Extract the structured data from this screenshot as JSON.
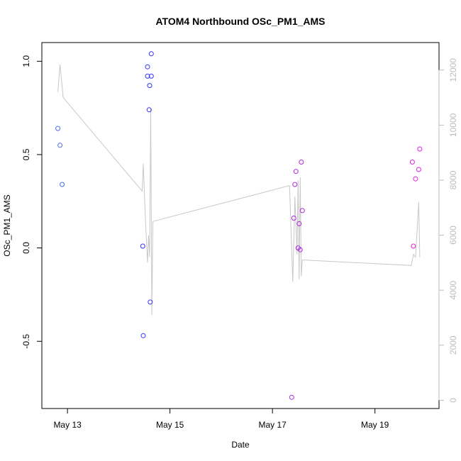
{
  "chart_data": {
    "type": "scatter",
    "title": "ATOM4 Northbound OSc_PM1_AMS",
    "xlabel": "Date",
    "ylabel": "OSc_PM1_AMS",
    "x_axis_type": "date",
    "xlim": [
      "2023-05-12T12:00",
      "2023-05-20T06:00"
    ],
    "ylim": [
      -0.86,
      1.1
    ],
    "y2lim": [
      -300,
      13000
    ],
    "x_ticks": [
      {
        "date": "2023-05-13T00:00",
        "label": "May 13"
      },
      {
        "date": "2023-05-15T00:00",
        "label": "May 15"
      },
      {
        "date": "2023-05-17T00:00",
        "label": "May 17"
      },
      {
        "date": "2023-05-19T00:00",
        "label": "May 19"
      }
    ],
    "y_ticks": [
      {
        "value": -0.5,
        "label": "-0.5"
      },
      {
        "value": 0.0,
        "label": "0.0"
      },
      {
        "value": 0.5,
        "label": "0.5"
      },
      {
        "value": 1.0,
        "label": "1.0"
      }
    ],
    "y2_ticks": [
      {
        "value": 0,
        "label": "0"
      },
      {
        "value": 2000,
        "label": "2000"
      },
      {
        "value": 4000,
        "label": "4000"
      },
      {
        "value": 6000,
        "label": "6000"
      },
      {
        "value": 8000,
        "label": "8000"
      },
      {
        "value": 10000,
        "label": "10000"
      },
      {
        "value": 12000,
        "label": "12000"
      }
    ],
    "grid": false,
    "series": [
      {
        "color": "#4a6cf0",
        "marker": "open-circle",
        "points": [
          [
            "2023-05-12T19:30",
            0.64
          ],
          [
            "2023-05-12T20:30",
            0.55
          ],
          [
            "2023-05-12T21:30",
            0.34
          ]
        ]
      },
      {
        "color": "#3333ff",
        "marker": "open-circle",
        "points": [
          [
            "2023-05-14T11:15",
            0.01
          ],
          [
            "2023-05-14T11:30",
            -0.47
          ],
          [
            "2023-05-14T13:30",
            0.97
          ],
          [
            "2023-05-14T13:30",
            0.92
          ],
          [
            "2023-05-14T14:15",
            0.74
          ],
          [
            "2023-05-14T14:30",
            0.87
          ],
          [
            "2023-05-14T14:45",
            -0.29
          ],
          [
            "2023-05-14T15:15",
            1.04
          ],
          [
            "2023-05-14T15:15",
            0.92
          ]
        ]
      },
      {
        "color": "#b026e0",
        "marker": "open-circle",
        "points": [
          [
            "2023-05-17T09:00",
            -0.8
          ],
          [
            "2023-05-17T10:00",
            0.16
          ],
          [
            "2023-05-17T10:30",
            0.34
          ],
          [
            "2023-05-17T11:00",
            0.41
          ],
          [
            "2023-05-17T12:00",
            0.0
          ],
          [
            "2023-05-17T12:30",
            0.13
          ],
          [
            "2023-05-17T13:00",
            -0.01
          ],
          [
            "2023-05-17T13:30",
            0.46
          ],
          [
            "2023-05-17T14:00",
            0.2
          ]
        ]
      },
      {
        "color": "#e020e0",
        "marker": "open-circle",
        "points": [
          [
            "2023-05-19T17:30",
            0.46
          ],
          [
            "2023-05-19T18:00",
            0.01
          ],
          [
            "2023-05-19T19:00",
            0.37
          ],
          [
            "2023-05-19T20:30",
            0.42
          ],
          [
            "2023-05-19T21:00",
            0.53
          ]
        ]
      }
    ],
    "line_series": {
      "color": "#c8c8c8",
      "axis": "right",
      "points": [
        [
          "2023-05-12T19:30",
          11200
        ],
        [
          "2023-05-12T20:30",
          12200
        ],
        [
          "2023-05-12T22:00",
          11000
        ],
        [
          "2023-05-14T11:00",
          7600
        ],
        [
          "2023-05-14T11:30",
          8600
        ],
        [
          "2023-05-14T12:30",
          6600
        ],
        [
          "2023-05-14T13:30",
          5000
        ],
        [
          "2023-05-14T14:00",
          6000
        ],
        [
          "2023-05-14T14:30",
          5200
        ],
        [
          "2023-05-14T15:00",
          10600
        ],
        [
          "2023-05-14T15:30",
          3100
        ],
        [
          "2023-05-14T16:00",
          6500
        ],
        [
          "2023-05-17T08:00",
          7800
        ],
        [
          "2023-05-17T09:30",
          4300
        ],
        [
          "2023-05-17T10:30",
          7400
        ],
        [
          "2023-05-17T11:30",
          5300
        ],
        [
          "2023-05-17T12:00",
          8000
        ],
        [
          "2023-05-17T12:30",
          4400
        ],
        [
          "2023-05-17T13:00",
          8100
        ],
        [
          "2023-05-17T13:30",
          4500
        ],
        [
          "2023-05-17T14:00",
          5100
        ],
        [
          "2023-05-19T17:00",
          4900
        ],
        [
          "2023-05-19T18:00",
          5300
        ],
        [
          "2023-05-19T19:00",
          5200
        ],
        [
          "2023-05-19T20:30",
          7200
        ],
        [
          "2023-05-19T21:00",
          5200
        ]
      ]
    }
  }
}
